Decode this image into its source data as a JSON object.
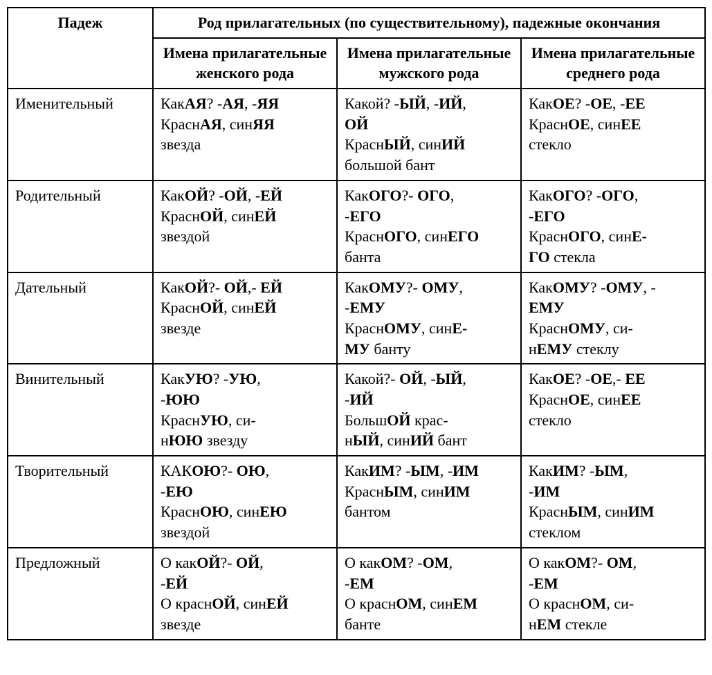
{
  "table": {
    "border_color": "#000000",
    "background_color": "#ffffff",
    "font_family": "Times New Roman",
    "cell_fontsize": 22,
    "header": {
      "case_label": "Падеж",
      "group_label": "Род прилагательных (по существительному), падежные окончания",
      "col1": "Имена прилагательные женского рода",
      "col2": "Имена прилагательные мужского рода",
      "col3": "Имена прилагательные среднего рода"
    },
    "rows": [
      {
        "case": "Именительный",
        "fem": "Как<b>АЯ</b>? -<b>АЯ</b>, -<b>ЯЯ</b><br>Красн<b>АЯ</b>, син<b>ЯЯ</b><br>звезда",
        "masc": "Какой? -<b>ЫЙ</b>, -<b>ИЙ</b>,<br><b>ОЙ</b><br>Красн<b>ЫЙ</b>, син<b>ИЙ</b><br>большой бант",
        "neut": "Как<b>ОЕ</b>? -<b>ОЕ</b>, -<b>ЕЕ</b><br>Красн<b>ОЕ</b>, син<b>ЕЕ</b><br>стекло"
      },
      {
        "case": "Родительный",
        "fem": "Как<b>ОЙ</b>? -<b>ОЙ</b>, -<b>ЕЙ</b><br>Красн<b>ОЙ</b>, син<b>ЕЙ</b><br>звездой",
        "masc": "Как<b>ОГО</b>?- <b>ОГО</b>,<br>-<b>ЕГО</b><br>Красн<b>ОГО</b>, син<b>ЕГО</b><br>банта",
        "neut": "Как<b>ОГО</b>? -<b>ОГО</b>,<br>-<b>ЕГО</b><br>Красн<b>ОГО</b>, син<b>Е-</b><br><b>ГО</b> стекла"
      },
      {
        "case": "Дательный",
        "fem": "Как<b>ОЙ</b>?- <b>ОЙ</b>,- <b>ЕЙ</b><br>Красн<b>ОЙ</b>, син<b>ЕЙ</b><br>звезде",
        "masc": "Как<b>ОМУ</b>?- <b>ОМУ</b>,<br>-<b>ЕМУ</b><br>Красн<b>ОМУ</b>, син<b>Е-</b><br><b>МУ</b> банту",
        "neut": "Как<b>ОМУ</b>? -<b>ОМУ</b>, -<br><b>ЕМУ</b><br>Красн<b>ОМУ</b>, си-<br>н<b>ЕМУ</b> стеклу"
      },
      {
        "case": "Винительный",
        "fem": "Как<b>УЮ</b>? -<b>УЮ</b>,<br>-<b>ЮЮ</b><br>Красн<b>УЮ</b>, си-<br>н<b>ЮЮ</b> звезду",
        "masc": "Какой?- <b>ОЙ</b>, -<b>ЫЙ</b>,<br>-<b>ИЙ</b><br>Больш<b>ОЙ</b> крас-<br>н<b>ЫЙ</b>, син<b>ИЙ</b> бант",
        "neut": "Как<b>ОЕ</b>? -<b>ОЕ</b>,- <b>ЕЕ</b><br>Красн<b>ОЕ</b>, син<b>ЕЕ</b><br>стекло"
      },
      {
        "case": "Творительный",
        "fem": "КАК<b>ОЮ</b>?- <b>ОЮ</b>,<br>-<b>ЕЮ</b><br>Красн<b>ОЮ</b>, син<b>ЕЮ</b><br>звездой",
        "masc": "Как<b>ИМ</b>? -<b>ЫМ</b>, -<b>ИМ</b><br>Красн<b>ЫМ</b>, син<b>ИМ</b><br>бантом",
        "neut": "Как<b>ИМ</b>? -<b>ЫМ</b>,<br>-<b>ИМ</b><br>Красн<b>ЫМ</b>, син<b>ИМ</b><br>стеклом"
      },
      {
        "case": "Предложный",
        "fem": "О как<b>ОЙ</b>?- <b>ОЙ</b>,<br>-<b>ЕЙ</b><br>О красн<b>ОЙ</b>, син<b>ЕЙ</b><br>звезде",
        "masc": "О как<b>ОМ</b>? -<b>ОМ</b>,<br>-<b>ЕМ</b><br>О красн<b>ОМ</b>, син<b>ЕМ</b><br>банте",
        "neut": "О как<b>ОМ</b>?- <b>ОМ</b>,<br>-<b>ЕМ</b><br>О красн<b>ОМ</b>, си-<br>н<b>ЕМ</b> стекле"
      }
    ]
  }
}
